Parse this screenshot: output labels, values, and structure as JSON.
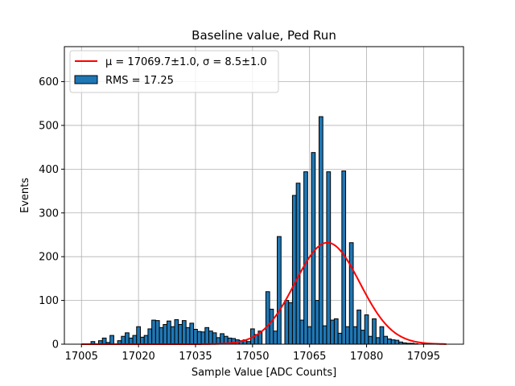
{
  "chart_data": {
    "type": "bar",
    "title": "Baseline value, Ped Run",
    "xlabel": "Sample Value [ADC Counts]",
    "ylabel": "Events",
    "xlim": [
      17000.5,
      17105.5
    ],
    "ylim": [
      0,
      680
    ],
    "xticks": [
      17005,
      17020,
      17035,
      17050,
      17065,
      17080,
      17095
    ],
    "yticks": [
      0,
      100,
      200,
      300,
      400,
      500,
      600
    ],
    "grid": true,
    "legend_position": "top-left",
    "histogram": {
      "name": "RMS = 17.25",
      "color": "#1f77b4",
      "edge_color": "#000000",
      "bin_width": 1,
      "x": [
        17007,
        17008,
        17009,
        17010,
        17011,
        17012,
        17013,
        17014,
        17015,
        17016,
        17017,
        17018,
        17019,
        17020,
        17021,
        17022,
        17023,
        17024,
        17025,
        17026,
        17027,
        17028,
        17029,
        17030,
        17031,
        17032,
        17033,
        17034,
        17035,
        17036,
        17037,
        17038,
        17039,
        17040,
        17041,
        17042,
        17043,
        17044,
        17045,
        17046,
        17047,
        17048,
        17049,
        17050,
        17051,
        17052,
        17053,
        17054,
        17055,
        17056,
        17057,
        17058,
        17059,
        17060,
        17061,
        17062,
        17063,
        17064,
        17065,
        17066,
        17067,
        17068,
        17069,
        17070,
        17071,
        17072,
        17073,
        17074,
        17075,
        17076,
        17077,
        17078,
        17079,
        17080,
        17081,
        17082,
        17083,
        17084,
        17085,
        17086,
        17087,
        17088,
        17089,
        17090,
        17091,
        17092,
        17093
      ],
      "values": [
        0,
        6,
        0,
        8,
        14,
        4,
        20,
        0,
        8,
        18,
        26,
        14,
        20,
        40,
        16,
        20,
        35,
        55,
        54,
        38,
        45,
        53,
        40,
        56,
        45,
        54,
        38,
        48,
        34,
        29,
        28,
        38,
        30,
        26,
        15,
        24,
        18,
        14,
        13,
        10,
        8,
        10,
        6,
        35,
        22,
        30,
        0,
        120,
        80,
        30,
        246,
        0,
        100,
        95,
        340,
        368,
        55,
        394,
        40,
        438,
        100,
        520,
        42,
        394,
        55,
        58,
        25,
        396,
        40,
        232,
        40,
        78,
        32,
        67,
        18,
        58,
        15,
        40,
        18,
        12,
        10,
        9,
        5,
        3,
        2,
        2,
        1
      ]
    },
    "fit": {
      "name": "$\\mu = 17069.7 \\pm 1.0$, $\\sigma = 8.5 \\pm 1.0$",
      "label_text": "μ = 17069.7±1.0, σ = 8.5±1.0",
      "type": "gaussian",
      "mu": 17069.7,
      "sigma": 8.5,
      "amplitude": 232,
      "x_range": [
        17005,
        17101
      ],
      "color": "#ff0000"
    }
  }
}
